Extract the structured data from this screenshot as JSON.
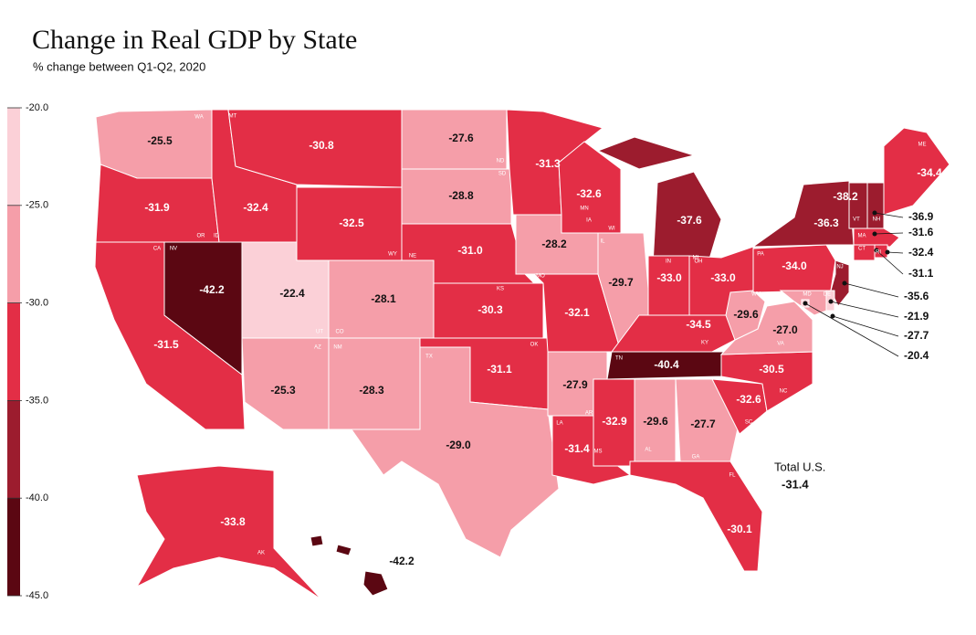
{
  "chart_data": {
    "type": "choropleth",
    "title": "Change in Real GDP by State",
    "subtitle": "% change between Q1-Q2, 2020",
    "states": [
      "WA",
      "OR",
      "CA",
      "NV",
      "ID",
      "MT",
      "WY",
      "UT",
      "CO",
      "AZ",
      "NM",
      "ND",
      "SD",
      "NE",
      "KS",
      "OK",
      "TX",
      "MN",
      "IA",
      "MO",
      "AR",
      "LA",
      "WI",
      "IL",
      "MI",
      "IN",
      "OH",
      "KY",
      "TN",
      "MS",
      "AL",
      "GA",
      "FL",
      "SC",
      "NC",
      "VA",
      "WV",
      "PA",
      "NY",
      "VT",
      "NH",
      "ME",
      "MA",
      "CT",
      "RI",
      "NJ",
      "DE",
      "MD",
      null,
      "AK",
      "HI"
    ],
    "values": [
      -25.5,
      -31.9,
      -31.5,
      -42.2,
      -32.4,
      -30.8,
      -32.5,
      -22.4,
      -28.1,
      -25.3,
      -28.3,
      -27.6,
      -28.8,
      -31.0,
      -30.3,
      -31.1,
      -29.0,
      -31.3,
      -28.2,
      -32.1,
      -27.9,
      -31.4,
      -32.6,
      -29.7,
      -37.6,
      -33.0,
      -33.0,
      -34.5,
      -40.4,
      -32.9,
      -29.6,
      -27.7,
      -30.1,
      -32.6,
      -30.5,
      -27.0,
      -29.6,
      -34.0,
      -36.3,
      -38.2,
      -36.9,
      -34.4,
      -31.6,
      -31.1,
      -32.4,
      -35.6,
      -21.9,
      -27.7,
      -20.4,
      -33.8,
      -42.2
    ],
    "value_labels": [
      "-25.5",
      "-31.9",
      "-31.5",
      "-42.2",
      "-32.4",
      "-30.8",
      "-32.5",
      "-22.4",
      "-28.1",
      "-25.3",
      "-28.3",
      "-27.6",
      "-28.8",
      "-31.0",
      "-30.3",
      "-31.1",
      "-29.0",
      "-31.3",
      "-28.2",
      "-32.1",
      "-27.9",
      "-31.4",
      "-32.6",
      "-29.7",
      "-37.6",
      "-33.0",
      "-33.0",
      "-34.5",
      "-40.4",
      "-32.9",
      "-29.6",
      "-27.7",
      "-30.1",
      "-32.6",
      "-30.5",
      "-27.0",
      "-29.6",
      "-34.0",
      "-36.3",
      "-38.2",
      "-36.9",
      "-34.4",
      "-31.6",
      "-31.1",
      "-32.4",
      "-35.6",
      "-21.9",
      "-27.7",
      "-20.4",
      "-33.8",
      "-42.2"
    ],
    "scale": {
      "lim": [
        -20,
        -45
      ],
      "ticks": [
        {
          "value": -20,
          "label": "-20.0"
        },
        {
          "value": -25,
          "label": "-25.0"
        },
        {
          "value": -30,
          "label": "-30.0"
        },
        {
          "value": -35,
          "label": "-35.0"
        },
        {
          "value": -40,
          "label": "-40.0"
        },
        {
          "value": -45,
          "label": "-45.0"
        }
      ],
      "colors": [
        "#fbd0d7",
        "#f59ea9",
        "#e32e46",
        "#9c1c2e",
        "#5b0712"
      ]
    },
    "total": {
      "label": "Total U.S.",
      "value": -31.4
    }
  }
}
